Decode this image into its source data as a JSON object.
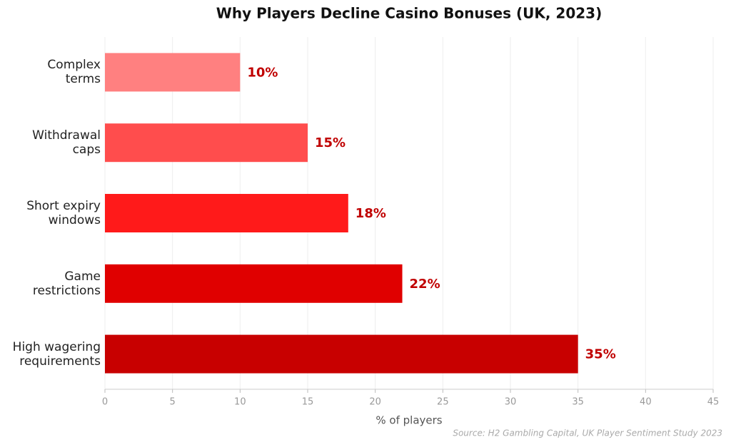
{
  "chart_data": {
    "type": "barh",
    "title": "Why Players Decline Casino Bonuses (UK, 2023)",
    "x_label": "% of players",
    "source": "Source: H2 Gambling Capital, UK Player Sentiment Study 2023",
    "categories": [
      "Complex\nterms",
      "Withdrawal\ncaps",
      "Short expiry\nwindows",
      "Game\nrestrictions",
      "High wagering\nrequirements"
    ],
    "values": [
      10,
      15,
      18,
      22,
      35
    ],
    "value_labels": [
      "10%",
      "15%",
      "18%",
      "22%",
      "35%"
    ],
    "colors": [
      "#ff8080",
      "#ff4d4d",
      "#ff1a1a",
      "#e00000",
      "#c80000"
    ],
    "xlim": [
      0,
      45
    ],
    "xticks": [
      0,
      5,
      10,
      15,
      20,
      25,
      30,
      35,
      40,
      45
    ],
    "grid": true
  }
}
